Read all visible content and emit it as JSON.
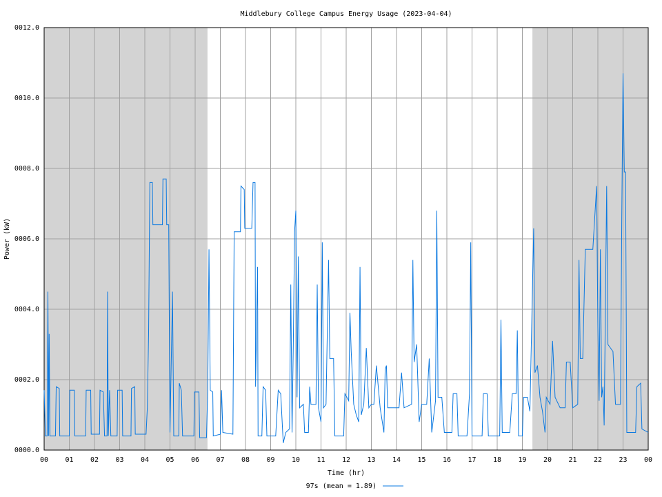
{
  "chart_data": {
    "type": "line",
    "title": "Middlebury College Campus Energy Usage (2023-04-04)",
    "xlabel": "Time (hr)",
    "ylabel": "Power (kW)",
    "xlim": [
      0,
      24
    ],
    "ylim": [
      0,
      12
    ],
    "xticks": [
      {
        "value": 0,
        "label": "00"
      },
      {
        "value": 1,
        "label": "01"
      },
      {
        "value": 2,
        "label": "02"
      },
      {
        "value": 3,
        "label": "03"
      },
      {
        "value": 4,
        "label": "04"
      },
      {
        "value": 5,
        "label": "05"
      },
      {
        "value": 6,
        "label": "06"
      },
      {
        "value": 7,
        "label": "07"
      },
      {
        "value": 8,
        "label": "08"
      },
      {
        "value": 9,
        "label": "09"
      },
      {
        "value": 10,
        "label": "10"
      },
      {
        "value": 11,
        "label": "11"
      },
      {
        "value": 12,
        "label": "12"
      },
      {
        "value": 13,
        "label": "13"
      },
      {
        "value": 14,
        "label": "14"
      },
      {
        "value": 15,
        "label": "15"
      },
      {
        "value": 16,
        "label": "16"
      },
      {
        "value": 17,
        "label": "17"
      },
      {
        "value": 18,
        "label": "18"
      },
      {
        "value": 19,
        "label": "19"
      },
      {
        "value": 20,
        "label": "20"
      },
      {
        "value": 21,
        "label": "21"
      },
      {
        "value": 22,
        "label": "22"
      },
      {
        "value": 23,
        "label": "23"
      },
      {
        "value": 24,
        "label": "00"
      }
    ],
    "yticks": [
      {
        "value": 0,
        "label": "0000.0"
      },
      {
        "value": 2,
        "label": "0002.0"
      },
      {
        "value": 4,
        "label": "0004.0"
      },
      {
        "value": 6,
        "label": "0006.0"
      },
      {
        "value": 8,
        "label": "0008.0"
      },
      {
        "value": 10,
        "label": "0010.0"
      },
      {
        "value": 12,
        "label": "0012.0"
      }
    ],
    "grid": true,
    "shaded_x_ranges": [
      [
        0,
        6.49
      ],
      [
        19.4,
        24
      ]
    ],
    "shade_color": "#d3d3d3",
    "legend": "bottom",
    "x": [
      0,
      0.05,
      0.12,
      0.15,
      0.18,
      0.2,
      0.23,
      0.45,
      0.48,
      0.6,
      0.62,
      1,
      1.02,
      1.2,
      1.22,
      1.65,
      1.67,
      1.85,
      1.87,
      2.2,
      2.22,
      2.35,
      2.4,
      2.5,
      2.52,
      2.55,
      2.6,
      2.65,
      2.9,
      2.92,
      3.1,
      3.12,
      3.45,
      3.47,
      3.6,
      3.62,
      4.05,
      4.1,
      4.15,
      4.2,
      4.3,
      4.32,
      4.7,
      4.72,
      4.85,
      4.87,
      4.95,
      5,
      5.1,
      5.15,
      5.35,
      5.37,
      5.45,
      5.5,
      5.95,
      5.97,
      6.15,
      6.18,
      6.45,
      6.5,
      6.55,
      6.6,
      6.7,
      6.72,
      7,
      7.05,
      7.1,
      7.5,
      7.55,
      7.8,
      7.82,
      7.95,
      7.97,
      8.25,
      8.3,
      8.38,
      8.4,
      8.48,
      8.5,
      8.65,
      8.7,
      8.8,
      8.85,
      9.2,
      9.3,
      9.4,
      9.5,
      9.6,
      9.75,
      9.8,
      9.85,
      9.9,
      9.95,
      10,
      10.05,
      10.1,
      10.15,
      10.3,
      10.35,
      10.5,
      10.55,
      10.6,
      10.8,
      10.85,
      10.9,
      11,
      11.05,
      11.1,
      11.2,
      11.3,
      11.35,
      11.5,
      11.55,
      11.9,
      11.95,
      12.1,
      12.15,
      12.2,
      12.3,
      12.4,
      12.5,
      12.55,
      12.6,
      12.7,
      12.8,
      12.9,
      13,
      13.1,
      13.2,
      13.35,
      13.5,
      13.55,
      13.6,
      13.65,
      14,
      14.1,
      14.2,
      14.3,
      14.6,
      14.65,
      14.7,
      14.8,
      14.9,
      15,
      15.2,
      15.3,
      15.4,
      15.55,
      15.6,
      15.65,
      15.8,
      15.9,
      16.2,
      16.25,
      16.4,
      16.45,
      16.8,
      16.9,
      16.95,
      17,
      17.4,
      17.45,
      17.6,
      17.65,
      18.1,
      18.15,
      18.2,
      18.5,
      18.6,
      18.75,
      18.8,
      18.85,
      19,
      19.05,
      19.2,
      19.3,
      19.45,
      19.5,
      19.6,
      19.7,
      19.8,
      19.9,
      19.95,
      20.1,
      20.2,
      20.3,
      20.5,
      20.7,
      20.75,
      20.9,
      21,
      21.2,
      21.25,
      21.3,
      21.4,
      21.5,
      21.8,
      21.95,
      22,
      22.05,
      22.1,
      22.15,
      22.2,
      22.25,
      22.35,
      22.4,
      22.6,
      22.7,
      22.9,
      22.95,
      23,
      23.05,
      23.1,
      23.15,
      23.5,
      23.55,
      23.7,
      23.75,
      24
    ],
    "series": [
      {
        "name": "97s (mean = 1.89)",
        "color": "#0a78e0",
        "values": [
          1.7,
          0.4,
          0.4,
          4.5,
          0.4,
          3.3,
          0.4,
          0.4,
          1.8,
          1.75,
          0.4,
          0.4,
          1.7,
          1.7,
          0.4,
          0.4,
          1.7,
          1.7,
          0.45,
          0.45,
          1.7,
          1.65,
          0.4,
          0.4,
          4.5,
          0.4,
          1.7,
          0.4,
          0.4,
          1.7,
          1.7,
          0.4,
          0.4,
          1.75,
          1.8,
          0.45,
          0.45,
          1.2,
          3.3,
          7.6,
          7.6,
          6.4,
          6.4,
          7.7,
          7.7,
          6.4,
          6.4,
          0.5,
          4.5,
          0.4,
          0.4,
          1.9,
          1.7,
          0.4,
          0.4,
          1.65,
          1.65,
          0.35,
          0.35,
          1.7,
          5.7,
          1.7,
          1.65,
          0.4,
          0.45,
          1.7,
          0.5,
          0.45,
          6.2,
          6.2,
          7.5,
          7.4,
          6.3,
          6.3,
          7.6,
          7.6,
          1.8,
          5.2,
          0.4,
          0.4,
          1.8,
          1.7,
          0.4,
          0.4,
          1.7,
          1.6,
          0.2,
          0.5,
          0.6,
          4.7,
          0.5,
          3,
          6.2,
          6.8,
          1.5,
          5.5,
          1.2,
          1.3,
          0.5,
          0.5,
          1.8,
          1.3,
          1.3,
          4.7,
          1.2,
          0.8,
          5.9,
          1.2,
          1.3,
          5.4,
          2.6,
          2.6,
          0.4,
          0.4,
          1.6,
          1.4,
          3.9,
          2.8,
          1.3,
          1,
          0.8,
          5.2,
          1,
          1.3,
          2.9,
          1.2,
          1.3,
          1.3,
          2.4,
          1.2,
          0.5,
          2.3,
          2.4,
          1.2,
          1.2,
          1.2,
          2.2,
          1.2,
          1.3,
          5.4,
          2.5,
          3,
          0.8,
          1.3,
          1.3,
          2.6,
          0.5,
          1.4,
          6.8,
          1.5,
          1.5,
          0.5,
          0.5,
          1.6,
          1.6,
          0.4,
          0.4,
          1.6,
          5.9,
          0.4,
          0.4,
          1.6,
          1.6,
          0.4,
          0.4,
          3.7,
          0.5,
          0.5,
          1.6,
          1.6,
          3.4,
          0.4,
          0.4,
          1.5,
          1.5,
          1.1,
          6.3,
          2.2,
          2.4,
          1.5,
          1.1,
          0.5,
          1.5,
          1.3,
          3.1,
          1.5,
          1.2,
          1.2,
          2.5,
          2.5,
          1.2,
          1.3,
          5.4,
          2.6,
          2.6,
          5.7,
          5.7,
          7.5,
          3.5,
          1.4,
          5.7,
          1.5,
          1.8,
          0.7,
          7.5,
          3,
          2.8,
          1.3,
          1.3,
          6.6,
          10.7,
          7.9,
          7.9,
          0.5,
          0.5,
          1.8,
          1.9,
          0.6,
          0.5
        ]
      }
    ]
  }
}
